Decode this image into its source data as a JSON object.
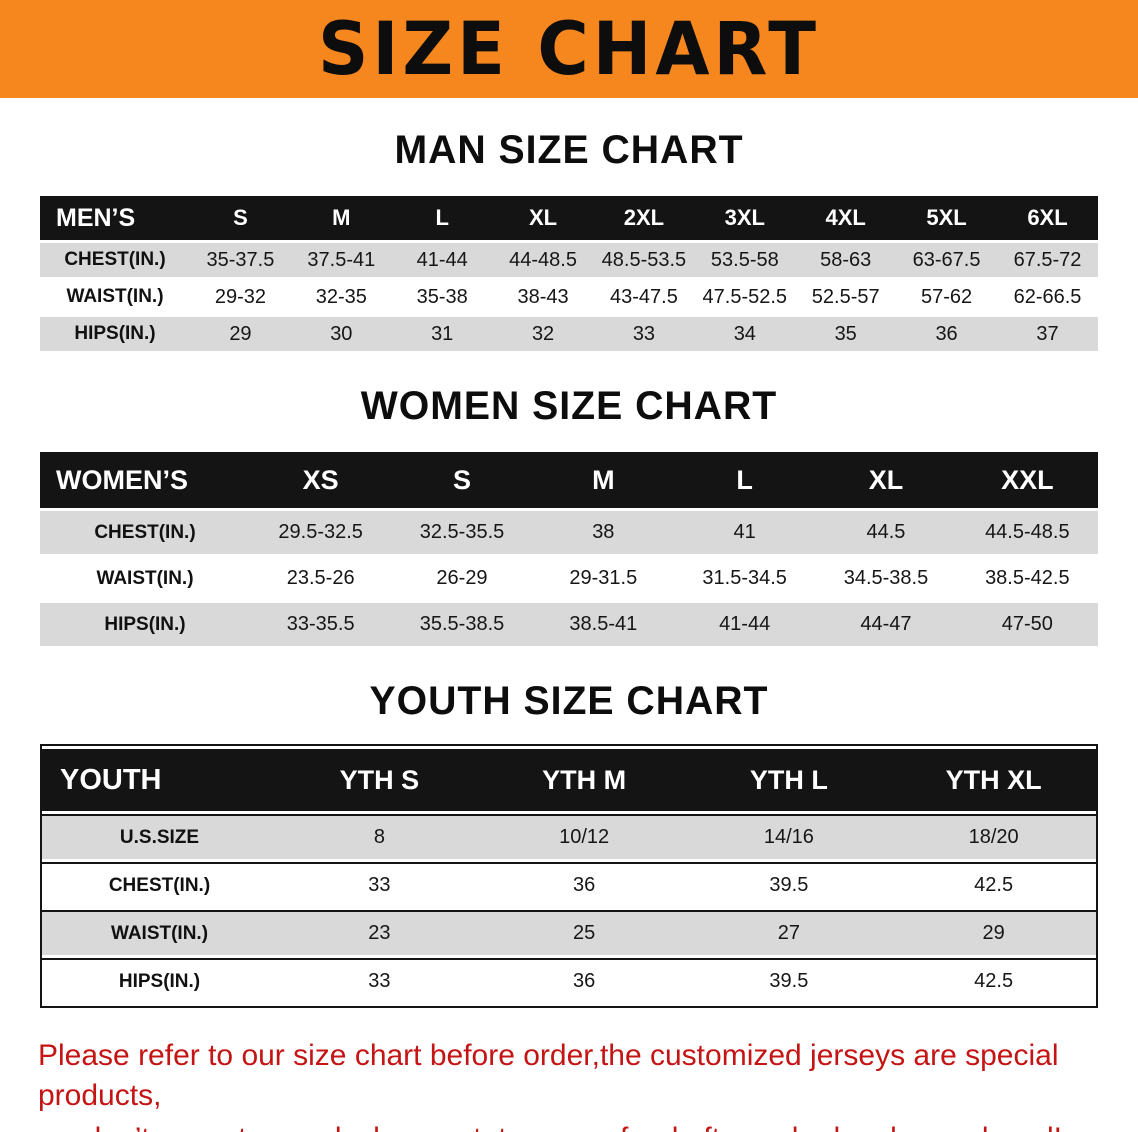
{
  "banner": {
    "title": "SIZE CHART"
  },
  "colors": {
    "banner_bg": "#F6861E",
    "table_header_bg": "#141414",
    "row_alt_bg": "#d9d9d9",
    "disclaimer_text": "#c41414"
  },
  "sections": [
    {
      "heading": "MAN SIZE CHART",
      "table": {
        "header": [
          "MEN’S",
          "S",
          "M",
          "L",
          "XL",
          "2XL",
          "3XL",
          "4XL",
          "5XL",
          "6XL"
        ],
        "rows": [
          [
            "CHEST(IN.)",
            "35-37.5",
            "37.5-41",
            "41-44",
            "44-48.5",
            "48.5-53.5",
            "53.5-58",
            "58-63",
            "63-67.5",
            "67.5-72"
          ],
          [
            "WAIST(IN.)",
            "29-32",
            "32-35",
            "35-38",
            "38-43",
            "43-47.5",
            "47.5-52.5",
            "52.5-57",
            "57-62",
            "62-66.5"
          ],
          [
            "HIPS(IN.)",
            "29",
            "30",
            "31",
            "32",
            "33",
            "34",
            "35",
            "36",
            "37"
          ]
        ]
      }
    },
    {
      "heading": "WOMEN SIZE CHART",
      "table": {
        "header": [
          "WOMEN’S",
          "XS",
          "S",
          "M",
          "L",
          "XL",
          "XXL"
        ],
        "rows": [
          [
            "CHEST(IN.)",
            "29.5-32.5",
            "32.5-35.5",
            "38",
            "41",
            "44.5",
            "44.5-48.5"
          ],
          [
            "WAIST(IN.)",
            "23.5-26",
            "26-29",
            "29-31.5",
            "31.5-34.5",
            "34.5-38.5",
            "38.5-42.5"
          ],
          [
            "HIPS(IN.)",
            "33-35.5",
            "35.5-38.5",
            "38.5-41",
            "41-44",
            "44-47",
            "47-50"
          ]
        ]
      }
    },
    {
      "heading": "YOUTH SIZE CHART",
      "table": {
        "header": [
          "YOUTH",
          "YTH S",
          "YTH M",
          "YTH L",
          "YTH XL"
        ],
        "rows": [
          [
            "U.S.SIZE",
            "8",
            "10/12",
            "14/16",
            "18/20"
          ],
          [
            "CHEST(IN.)",
            "33",
            "36",
            "39.5",
            "42.5"
          ],
          [
            "WAIST(IN.)",
            "23",
            "25",
            "27",
            "29"
          ],
          [
            "HIPS(IN.)",
            "33",
            "36",
            "39.5",
            "42.5"
          ]
        ]
      }
    }
  ],
  "disclaimer": {
    "line1": "Please refer to our size chart before order,the customized jerseys are special products,",
    "line2": "we don’t accept cancel, change, teturn or refund after order has been placed!"
  }
}
